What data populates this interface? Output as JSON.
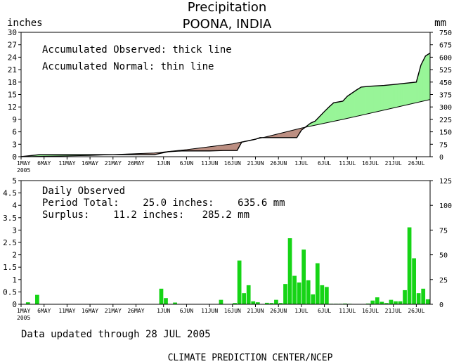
{
  "title": "Precipitation",
  "subtitle": "POONA, INDIA",
  "footer_updated": "Data updated through 28 JUL 2005",
  "footer_source": "CLIMATE PREDICTION CENTER/NCEP",
  "colors": {
    "surplus_fill": "#98f598",
    "deficit_fill": "#bc8f82",
    "bar_fill": "#16d416",
    "line": "#000000"
  },
  "chart_data": [
    {
      "type": "area",
      "annotations": [
        "Accumulated Observed: thick line",
        "Accumulated Normal: thin line"
      ],
      "left_axis_unit": "inches",
      "right_axis_unit": "mm",
      "ylim": [
        0,
        30
      ],
      "y_ticks": [
        "0",
        "3",
        "6",
        "9",
        "12",
        "15",
        "18",
        "21",
        "24",
        "27",
        "30"
      ],
      "right_ticks": [
        "0",
        "75",
        "150",
        "225",
        "300",
        "375",
        "450",
        "525",
        "600",
        "675",
        "750"
      ],
      "x_tick_labels": [
        "1MAY",
        "6MAY",
        "11MAY",
        "16MAY",
        "21MAY",
        "26MAY",
        "1JUN",
        "6JUN",
        "11JUN",
        "16JUN",
        "21JUN",
        "26JUN",
        "1JUL",
        "6JUL",
        "11JUL",
        "16JUL",
        "21JUL",
        "26JUL"
      ],
      "x_year_label": "2005",
      "x_domain_days": [
        0,
        89
      ],
      "series": [
        {
          "name": "Accumulated Observed",
          "x_days": [
            0,
            4,
            6,
            8,
            29,
            32,
            35,
            38,
            41,
            44,
            47,
            48,
            51,
            52,
            54,
            57,
            60,
            61,
            63,
            64,
            66,
            67,
            68,
            70,
            71,
            73,
            74,
            76,
            79,
            81,
            86,
            87,
            88,
            89
          ],
          "values": [
            0,
            0.5,
            0.5,
            0.5,
            0.5,
            1.2,
            1.4,
            1.4,
            1.4,
            1.5,
            1.5,
            3.5,
            4.2,
            4.6,
            4.6,
            4.6,
            4.6,
            6.4,
            8.1,
            8.6,
            10.9,
            12.0,
            13.0,
            13.4,
            14.6,
            16.1,
            16.8,
            17.0,
            17.2,
            17.4,
            18.0,
            22.1,
            24.3,
            25.0
          ]
        },
        {
          "name": "Accumulated Normal",
          "x_days": [
            0,
            15,
            29,
            36,
            46,
            53,
            61,
            70,
            80,
            89
          ],
          "values": [
            0,
            0.3,
            0.9,
            1.7,
            3.1,
            4.7,
            6.9,
            9.0,
            11.5,
            13.8
          ]
        }
      ]
    },
    {
      "type": "bar",
      "annotations": [
        "Daily Observed",
        "Period Total:    25.0 inches:    635.6 mm",
        "Surplus:    11.2 inches:   285.2 mm"
      ],
      "ylim": [
        0,
        5
      ],
      "y_ticks": [
        "0",
        "0.5",
        "1",
        "1.5",
        "2",
        "2.5",
        "3",
        "3.5",
        "4",
        "4.5",
        "5"
      ],
      "right_ticks": [
        "0",
        "25",
        "50",
        "75",
        "100",
        "125"
      ],
      "x_tick_labels": [
        "1MAY",
        "6MAY",
        "11MAY",
        "16MAY",
        "21MAY",
        "26MAY",
        "1JUN",
        "6JUN",
        "11JUN",
        "16JUN",
        "21JUN",
        "26JUN",
        "1JUL",
        "6JUL",
        "11JUL",
        "16JUL",
        "21JUL",
        "26JUL"
      ],
      "x_year_label": "2005",
      "x_days": [
        2,
        4,
        31,
        32,
        34,
        44,
        47,
        48,
        49,
        50,
        51,
        52,
        54,
        55,
        56,
        57,
        58,
        59,
        60,
        61,
        62,
        63,
        64,
        65,
        66,
        67,
        68,
        69,
        70,
        71,
        72,
        76,
        77,
        78,
        79,
        80,
        81,
        82,
        83,
        84,
        85,
        86,
        87,
        88,
        89
      ],
      "values": [
        0.08,
        0.38,
        0.63,
        0.25,
        0.07,
        0.18,
        0.05,
        1.77,
        0.45,
        0.77,
        0.12,
        0.08,
        0.06,
        0.05,
        0.18,
        0.05,
        0.82,
        2.67,
        1.15,
        0.88,
        2.21,
        0.97,
        0.4,
        1.66,
        0.77,
        0.7,
        0.02,
        0.02,
        0.02,
        0.03,
        0.02,
        0.03,
        0.15,
        0.28,
        0.1,
        0.05,
        0.18,
        0.12,
        0.12,
        0.57,
        3.11,
        1.86,
        0.45,
        0.63,
        0.2
      ]
    }
  ]
}
